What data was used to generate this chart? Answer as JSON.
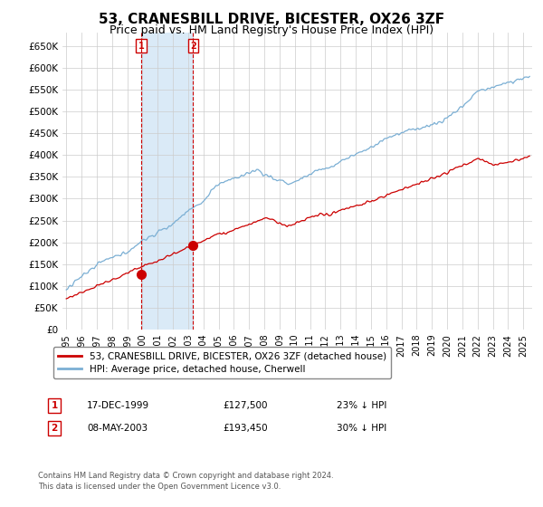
{
  "title": "53, CRANESBILL DRIVE, BICESTER, OX26 3ZF",
  "subtitle": "Price paid vs. HM Land Registry's House Price Index (HPI)",
  "title_fontsize": 11,
  "subtitle_fontsize": 9,
  "ylabel_ticks": [
    "£0",
    "£50K",
    "£100K",
    "£150K",
    "£200K",
    "£250K",
    "£300K",
    "£350K",
    "£400K",
    "£450K",
    "£500K",
    "£550K",
    "£600K",
    "£650K"
  ],
  "ytick_values": [
    0,
    50000,
    100000,
    150000,
    200000,
    250000,
    300000,
    350000,
    400000,
    450000,
    500000,
    550000,
    600000,
    650000
  ],
  "ylim": [
    0,
    680000
  ],
  "hpi_color": "#7bafd4",
  "property_color": "#cc0000",
  "sale1_date_label": "17-DEC-1999",
  "sale1_price": 127500,
  "sale1_hpi_pct": "23% ↓ HPI",
  "sale2_date_label": "08-MAY-2003",
  "sale2_price": 193450,
  "sale2_hpi_pct": "30% ↓ HPI",
  "legend_property": "53, CRANESBILL DRIVE, BICESTER, OX26 3ZF (detached house)",
  "legend_hpi": "HPI: Average price, detached house, Cherwell",
  "footnote": "Contains HM Land Registry data © Crown copyright and database right 2024.\nThis data is licensed under the Open Government Licence v3.0.",
  "shaded_region_color": "#daeaf7",
  "background_color": "#ffffff",
  "grid_color": "#cccccc",
  "x_start_year": 1995,
  "x_end_year": 2025
}
